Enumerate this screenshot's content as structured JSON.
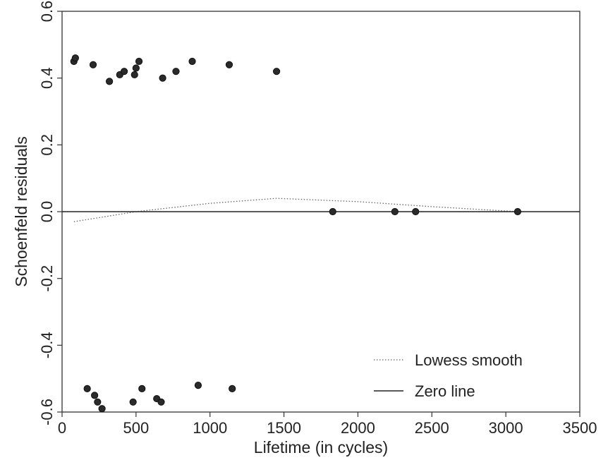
{
  "chart_data": {
    "type": "scatter",
    "xlabel": "Lifetime (in cycles)",
    "ylabel": "Schoenfeld residuals",
    "xlim": [
      0,
      3500
    ],
    "ylim": [
      -0.6,
      0.6
    ],
    "x_ticks": [
      0,
      500,
      1000,
      1500,
      2000,
      2500,
      3000,
      3500
    ],
    "y_ticks": [
      -0.6,
      -0.4,
      -0.2,
      0.0,
      0.2,
      0.4,
      0.6
    ],
    "x_tick_labels": [
      "0",
      "500",
      "1000",
      "1500",
      "2000",
      "2500",
      "3000",
      "3500"
    ],
    "y_tick_labels": [
      "-0.6",
      "-0.4",
      "-0.2",
      "0.0",
      "0.2",
      "0.4",
      "0.6"
    ],
    "grid": false,
    "legend_position": "bottom-right",
    "points": {
      "x": [
        80,
        90,
        210,
        320,
        390,
        420,
        490,
        500,
        520,
        680,
        770,
        880,
        1130,
        1450,
        1830,
        2250,
        2390,
        3080,
        170,
        220,
        240,
        270,
        480,
        540,
        640,
        670,
        920,
        1150
      ],
      "y": [
        0.45,
        0.46,
        0.44,
        0.39,
        0.41,
        0.42,
        0.41,
        0.43,
        0.45,
        0.4,
        0.42,
        0.45,
        0.44,
        0.42,
        0.0,
        0.0,
        0.0,
        0.0,
        -0.53,
        -0.55,
        -0.57,
        -0.59,
        -0.57,
        -0.53,
        -0.56,
        -0.57,
        -0.52,
        -0.53
      ]
    },
    "series": [
      {
        "name": "Lowess smooth",
        "style": "dotted",
        "x": [
          80,
          500,
          1000,
          1450,
          2000,
          2500,
          3080
        ],
        "y": [
          -0.03,
          0.0,
          0.025,
          0.04,
          0.03,
          0.015,
          0.0
        ]
      },
      {
        "name": "Zero line",
        "style": "solid",
        "x": [
          0,
          3500
        ],
        "y": [
          0.0,
          0.0
        ]
      }
    ]
  }
}
